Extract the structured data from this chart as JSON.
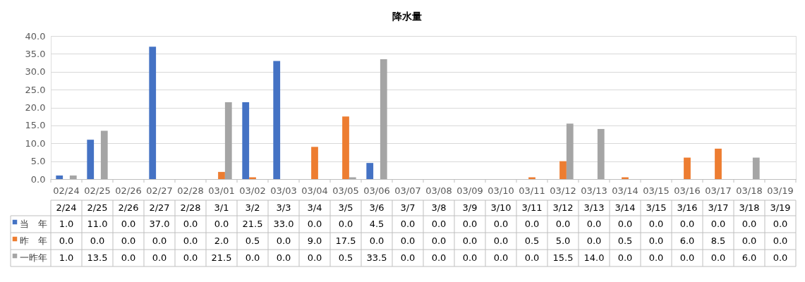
{
  "chart_data": {
    "type": "bar",
    "title": "降水量",
    "categories": [
      "02/24",
      "02/25",
      "02/26",
      "02/27",
      "02/28",
      "03/01",
      "03/02",
      "03/03",
      "03/04",
      "03/05",
      "03/06",
      "03/07",
      "03/08",
      "03/09",
      "03/10",
      "03/11",
      "03/12",
      "03/13",
      "03/14",
      "03/15",
      "03/16",
      "03/17",
      "03/18",
      "03/19"
    ],
    "series": [
      {
        "name": "当　年",
        "color": "#4472c4",
        "values": [
          1.0,
          11.0,
          0.0,
          37.0,
          0.0,
          0.0,
          21.5,
          33.0,
          0.0,
          0.0,
          4.5,
          0.0,
          0.0,
          0.0,
          0.0,
          0.0,
          0.0,
          0.0,
          0.0,
          0.0,
          0.0,
          0.0,
          0.0,
          0.0
        ],
        "value_labels": [
          "1.0",
          "11.0",
          "0.0",
          "37.0",
          "0.0",
          "0.0",
          "21.5",
          "33.0",
          "0.0",
          "0.0",
          "4.5",
          "0.0",
          "0.0",
          "0.0",
          "0.0",
          "0.0",
          "0.0",
          "0.0",
          "0.0",
          "0.0",
          "0.0",
          "0.0",
          "0.0",
          "0.0"
        ]
      },
      {
        "name": "昨　年",
        "color": "#ed7d31",
        "values": [
          0.0,
          0.0,
          0.0,
          0.0,
          0.0,
          2.0,
          0.5,
          0.0,
          9.0,
          17.5,
          0.0,
          0.0,
          0.0,
          0.0,
          0.0,
          0.5,
          5.0,
          0.0,
          0.5,
          0.0,
          6.0,
          8.5,
          0.0,
          0.0
        ],
        "value_labels": [
          "0.0",
          "0.0",
          "0.0",
          "0.0",
          "0.0",
          "2.0",
          "0.5",
          "0.0",
          "9.0",
          "17.5",
          "0.0",
          "0.0",
          "0.0",
          "0.0",
          "0.0",
          "0.5",
          "5.0",
          "0.0",
          "0.5",
          "0.0",
          "6.0",
          "8.5",
          "0.0",
          "0.0"
        ]
      },
      {
        "name": "一昨年",
        "color": "#a5a5a5",
        "values": [
          1.0,
          13.5,
          0.0,
          0.0,
          0.0,
          21.5,
          0.0,
          0.0,
          0.0,
          0.5,
          33.5,
          0.0,
          0.0,
          0.0,
          0.0,
          0.0,
          15.5,
          14.0,
          0.0,
          0.0,
          0.0,
          0.0,
          6.0,
          0.0
        ],
        "value_labels": [
          "1.0",
          "13.5",
          "0.0",
          "0.0",
          "0.0",
          "21.5",
          "0.0",
          "0.0",
          "0.0",
          "0.5",
          "33.5",
          "0.0",
          "0.0",
          "0.0",
          "0.0",
          "0.0",
          "15.5",
          "14.0",
          "0.0",
          "0.0",
          "0.0",
          "0.0",
          "6.0",
          "0.0"
        ]
      }
    ],
    "annotations": [
      "2/24",
      "2/25",
      "2/26",
      "2/27",
      "2/28",
      "3/1",
      "3/2",
      "3/3",
      "3/4",
      "3/5",
      "3/6",
      "3/7",
      "3/8",
      "3/9",
      "3/10",
      "3/11",
      "3/12",
      "3/13",
      "3/14",
      "3/15",
      "3/16",
      "3/17",
      "3/18",
      "3/19"
    ],
    "ylim": [
      0,
      40
    ],
    "yticks": [
      {
        "value": 0,
        "label": "0.0"
      },
      {
        "value": 5,
        "label": "5.0"
      },
      {
        "value": 10,
        "label": "10.0"
      },
      {
        "value": 15,
        "label": "15.0"
      },
      {
        "value": 20,
        "label": "20.0"
      },
      {
        "value": 25,
        "label": "25.0"
      },
      {
        "value": 30,
        "label": "30.0"
      },
      {
        "value": 35,
        "label": "35.0"
      },
      {
        "value": 40,
        "label": "40.0"
      }
    ],
    "grid": "y",
    "legend": "bottom left"
  }
}
